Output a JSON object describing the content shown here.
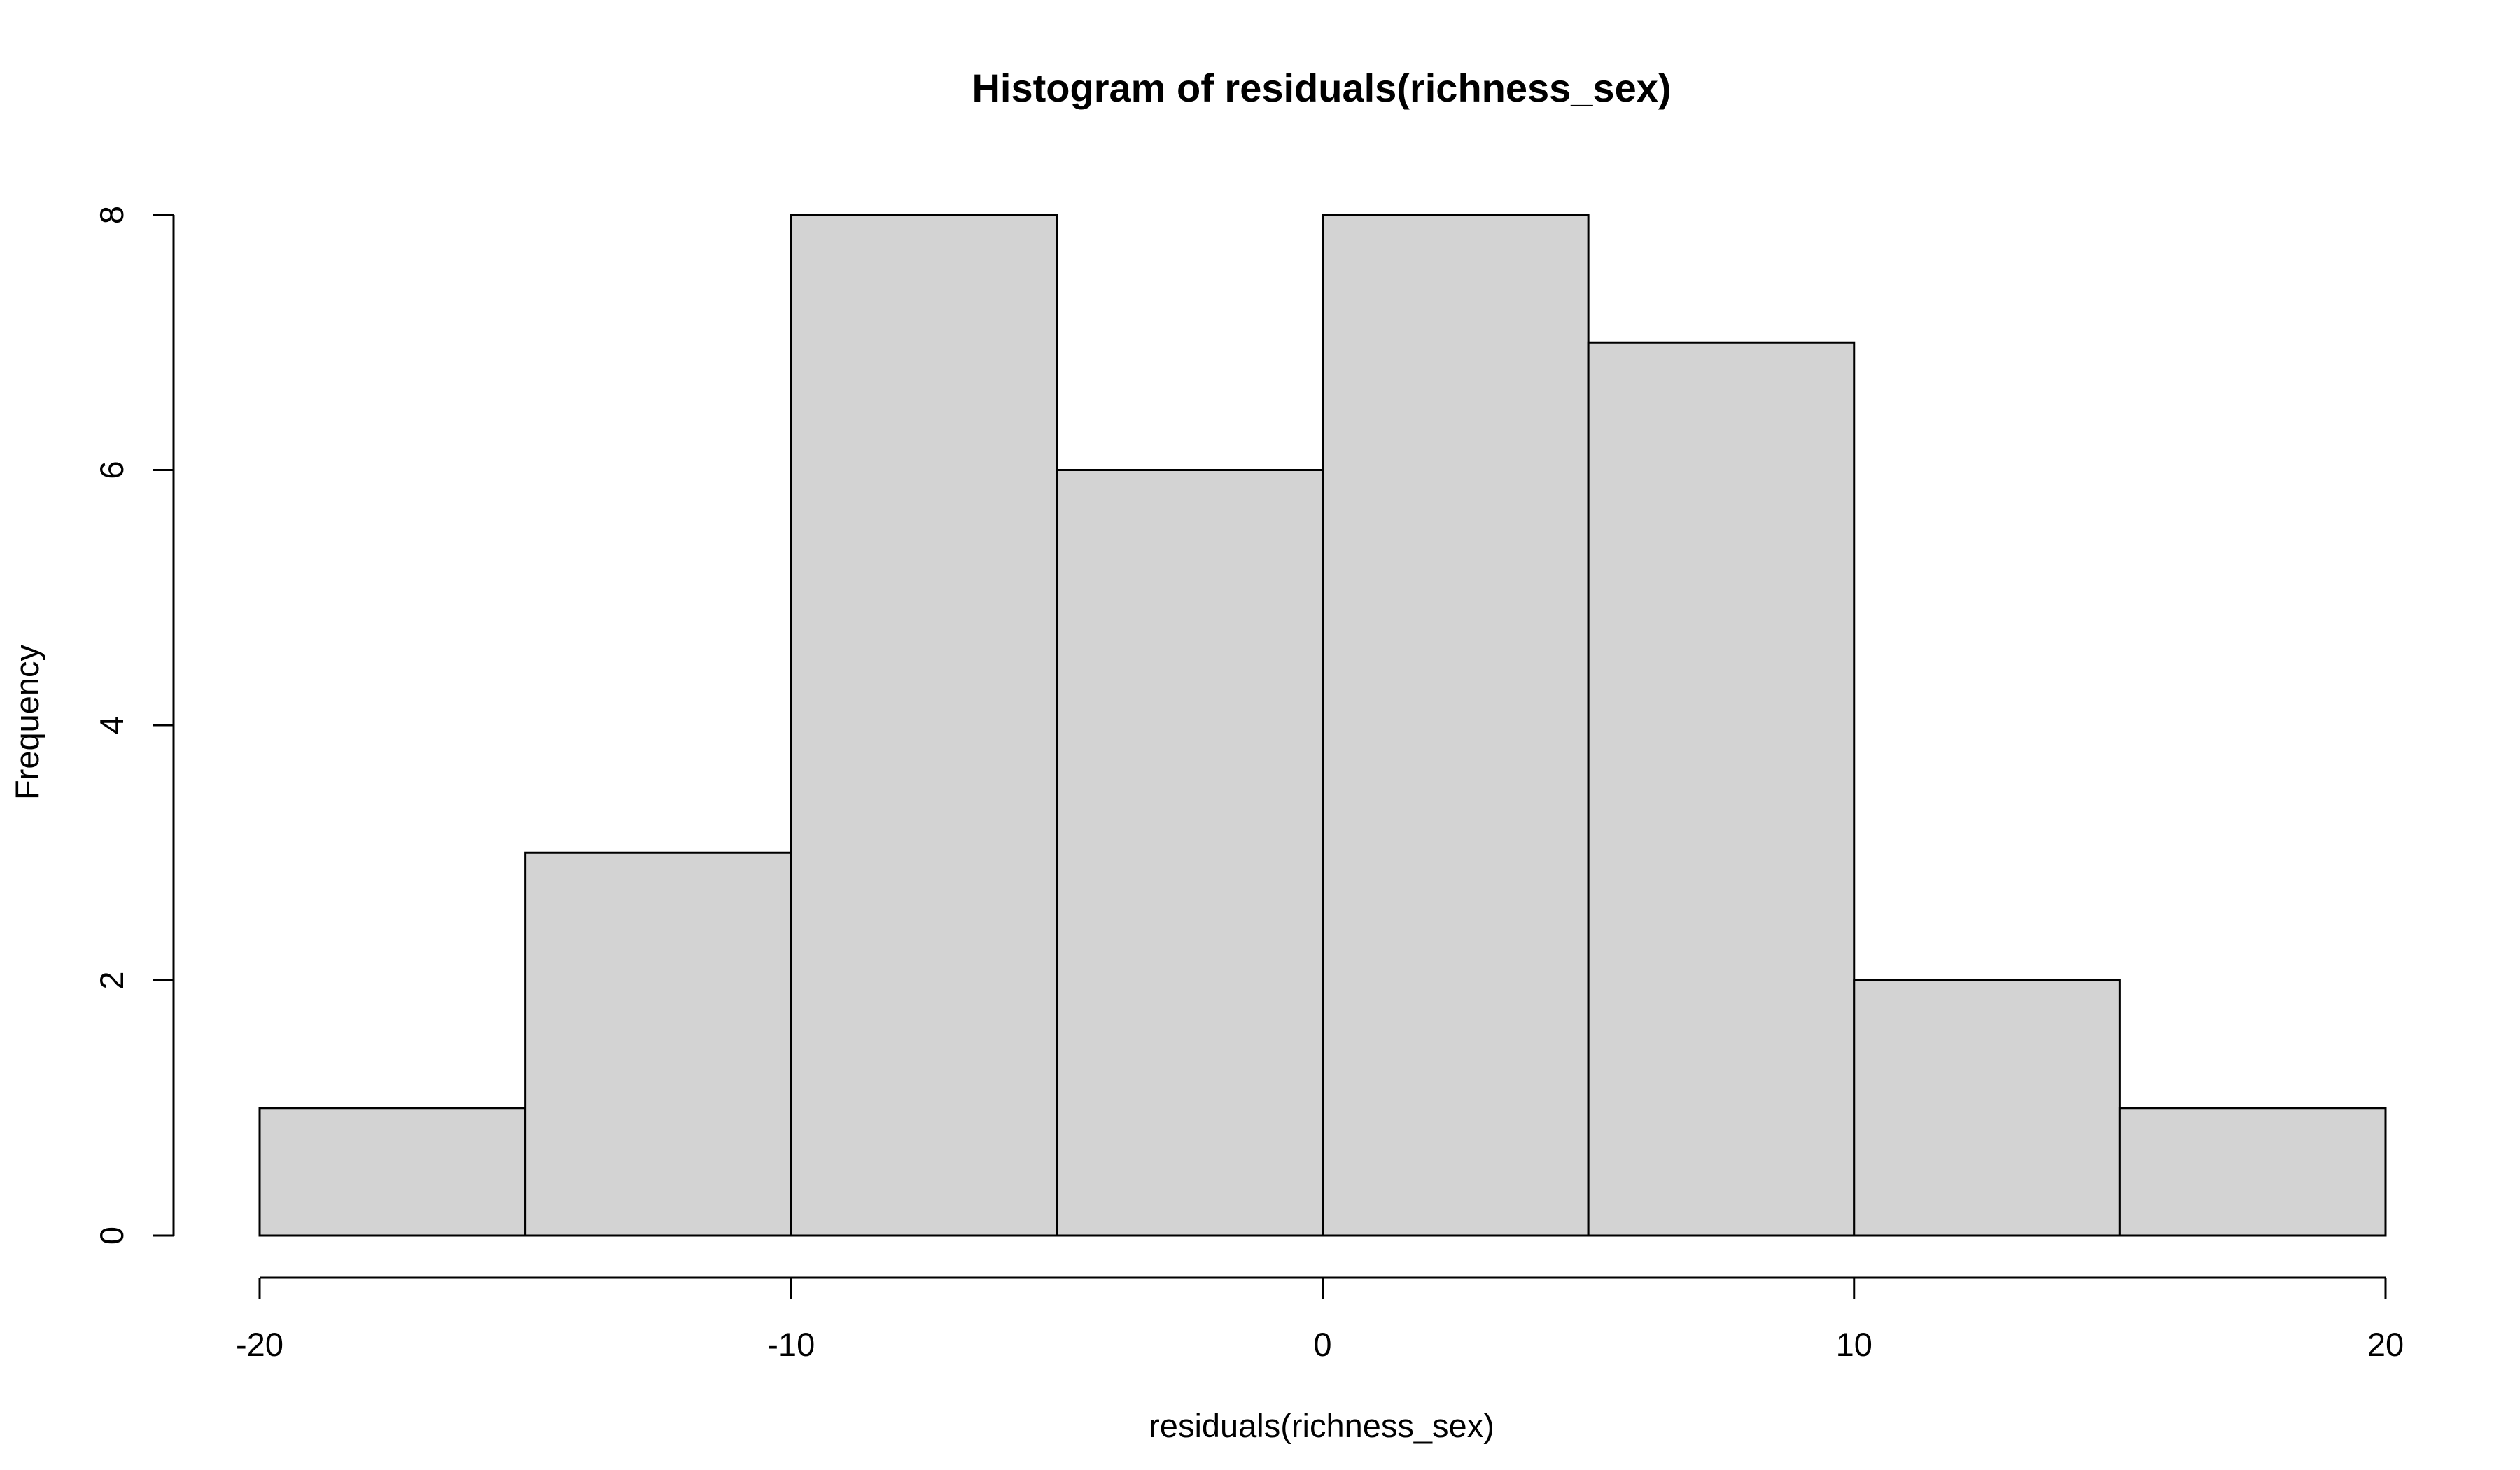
{
  "chart_data": {
    "type": "bar",
    "histogram": true,
    "title": "Histogram of residuals(richness_sex)",
    "xlabel": "residuals(richness_sex)",
    "ylabel": "Frequency",
    "bins": [
      {
        "from": -20,
        "to": -15,
        "count": 1
      },
      {
        "from": -15,
        "to": -10,
        "count": 3
      },
      {
        "from": -10,
        "to": -5,
        "count": 8
      },
      {
        "from": -5,
        "to": 0,
        "count": 6
      },
      {
        "from": 0,
        "to": 5,
        "count": 8
      },
      {
        "from": 5,
        "to": 10,
        "count": 7
      },
      {
        "from": 10,
        "to": 15,
        "count": 2
      },
      {
        "from": 15,
        "to": 20,
        "count": 1
      }
    ],
    "xlim": [
      -20,
      20
    ],
    "ylim": [
      0,
      8
    ],
    "x_ticks": [
      -20,
      -10,
      0,
      10,
      20
    ],
    "y_ticks": [
      0,
      2,
      4,
      6,
      8
    ],
    "x_tick_labels": [
      "-20",
      "-10",
      "0",
      "10",
      "20"
    ],
    "y_tick_labels": [
      "0",
      "2",
      "4",
      "6",
      "8"
    ],
    "grid": false,
    "legend": "none",
    "bar_fill": "#d3d3d3",
    "bar_stroke": "#000000"
  }
}
